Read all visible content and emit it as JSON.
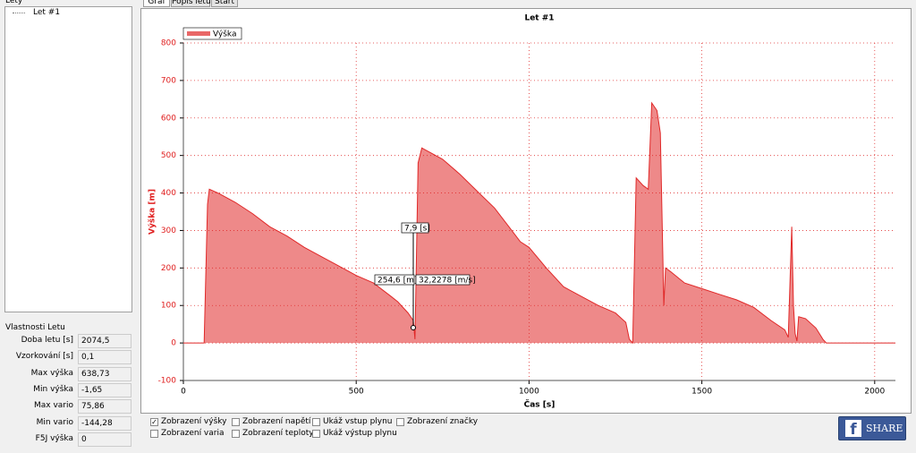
{
  "tree": {
    "title": "Lety",
    "items": [
      "Let #1"
    ]
  },
  "properties": {
    "title": "Vlastnosti Letu",
    "rows": [
      [
        "Doba letu [s]",
        "2074,5"
      ],
      [
        "Vzorkování [s]",
        "0,1"
      ],
      [
        "Max výška",
        "638,73"
      ],
      [
        "Min výška",
        "-1,65"
      ],
      [
        "Max vario",
        "75,86"
      ],
      [
        "Min vario",
        "-144,28"
      ],
      [
        "F5J výška",
        "0"
      ]
    ]
  },
  "tabs": [
    "Graf",
    "Popis letu",
    "Start"
  ],
  "chart_data": {
    "type": "area",
    "title": "Let #1",
    "xlabel": "Čas [s]",
    "ylabel": "Výška [m]",
    "x": [
      0,
      50,
      60,
      70,
      75,
      100,
      150,
      200,
      250,
      300,
      350,
      400,
      450,
      500,
      550,
      600,
      620,
      650,
      665,
      670,
      679,
      690,
      700,
      750,
      800,
      850,
      900,
      950,
      975,
      1000,
      1050,
      1100,
      1150,
      1200,
      1250,
      1280,
      1290,
      1300,
      1310,
      1330,
      1345,
      1355,
      1370,
      1380,
      1390,
      1395,
      1410,
      1450,
      1500,
      1550,
      1600,
      1650,
      1700,
      1740,
      1750,
      1760,
      1765,
      1770,
      1775,
      1780,
      1800,
      1830,
      1850,
      1860,
      2060
    ],
    "series": [
      {
        "name": "Výška",
        "color": "#e02828",
        "values": [
          0,
          0,
          0,
          370,
          410,
          400,
          375,
          345,
          310,
          285,
          255,
          230,
          205,
          180,
          160,
          125,
          110,
          80,
          60,
          10,
          480,
          520,
          515,
          490,
          450,
          405,
          360,
          300,
          270,
          255,
          200,
          150,
          125,
          100,
          80,
          55,
          10,
          0,
          440,
          420,
          410,
          640,
          620,
          560,
          100,
          200,
          190,
          160,
          145,
          130,
          115,
          95,
          60,
          35,
          15,
          310,
          100,
          25,
          5,
          70,
          65,
          40,
          10,
          0,
          0
        ]
      }
    ],
    "xlim": [
      0,
      2060
    ],
    "ylim": [
      -100,
      800
    ],
    "xticks": [
      0,
      500,
      1000,
      1500,
      2000
    ],
    "yticks": [
      -100,
      0,
      100,
      200,
      300,
      400,
      500,
      600,
      700,
      800
    ],
    "grid": true,
    "legend": "top-left",
    "annotations": [
      "7,9 [s]",
      "254,6 [m]",
      "32,2278 [m/s]"
    ]
  },
  "options": [
    {
      "label": "Zobrazení výšky",
      "checked": true
    },
    {
      "label": "Zobrazení varia",
      "checked": false
    },
    {
      "label": "Zobrazení napětí",
      "checked": false
    },
    {
      "label": "Zobrazení teploty",
      "checked": false
    },
    {
      "label": "Ukáž vstup plynu",
      "checked": false
    },
    {
      "label": "Ukáž výstup plynu",
      "checked": false
    },
    {
      "label": "Zobrazení značky",
      "checked": false
    }
  ],
  "share_button": {
    "icon": "f",
    "label": "SHARE"
  }
}
